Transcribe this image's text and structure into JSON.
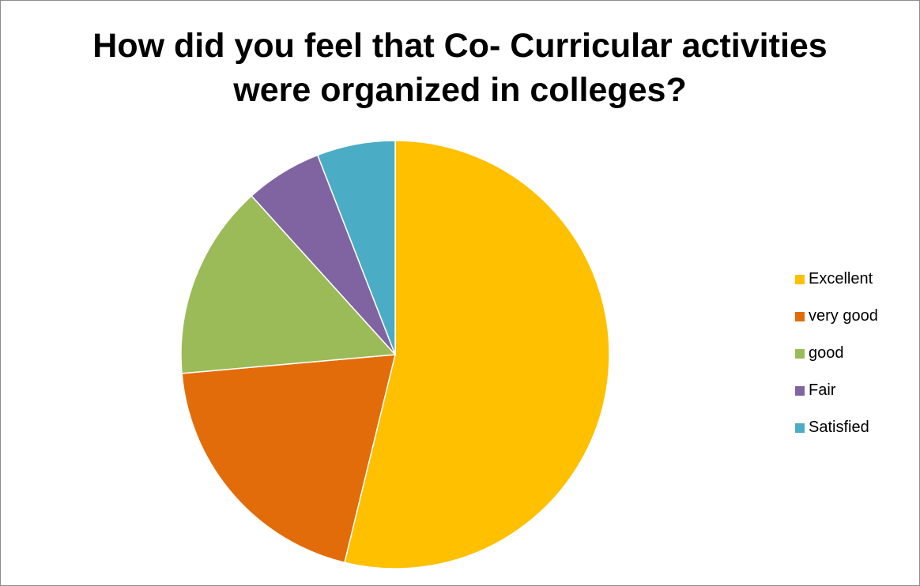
{
  "chart_data": {
    "type": "pie",
    "title_lines": [
      "How did you feel that Co- Curricular activities",
      "were organized in colleges?"
    ],
    "categories": [
      "Excellent",
      "very good",
      "good",
      "Fair",
      "Satisfied"
    ],
    "values": [
      53.8,
      19.8,
      14.7,
      5.8,
      5.9
    ],
    "colors": [
      "#FFC000",
      "#E36C0A",
      "#9BBB59",
      "#8064A2",
      "#4BACC6"
    ],
    "start_angle_deg": 0,
    "direction": "clockwise",
    "legend_position": "right"
  }
}
